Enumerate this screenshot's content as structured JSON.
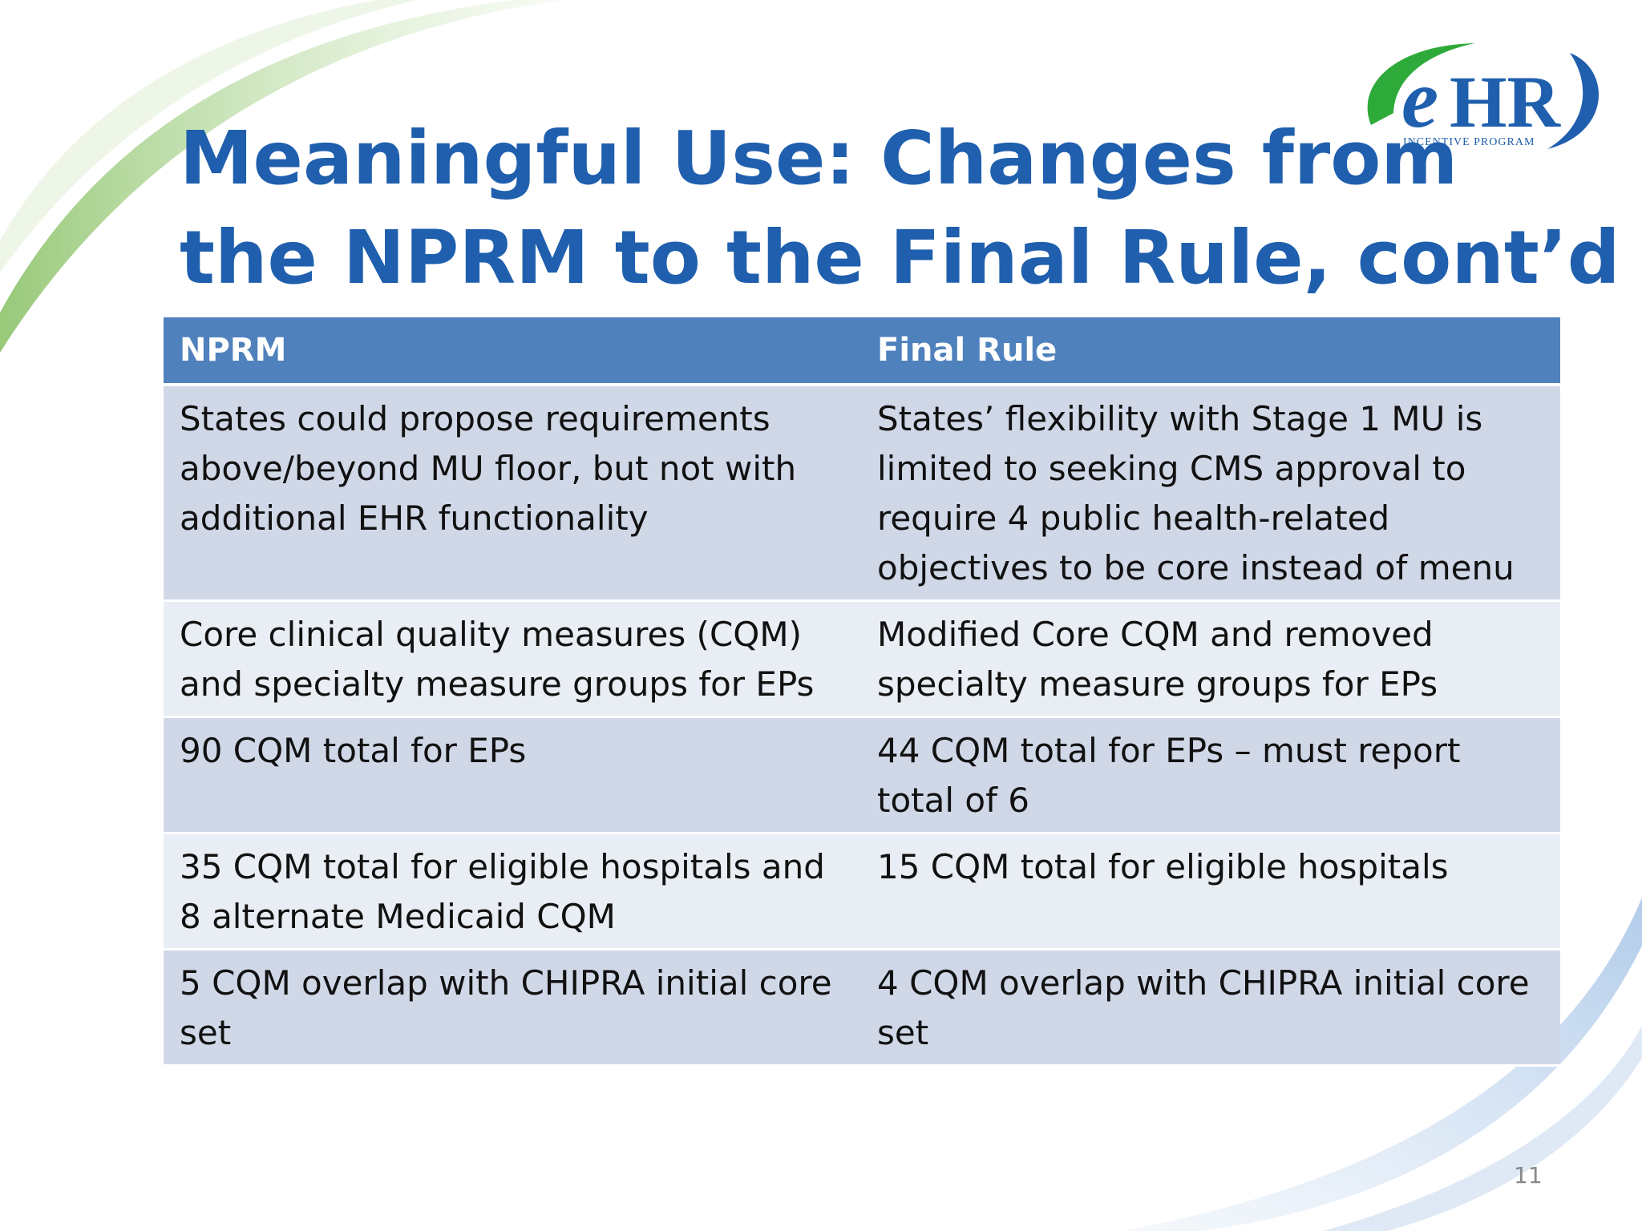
{
  "slide": {
    "title_line1": "Meaningful Use: Changes from",
    "title_line2": "the NPRM to the Final Rule, cont’d",
    "page_number": "11"
  },
  "logo": {
    "mark": "eHR",
    "subtitle": "INCENTIVE PROGRAM",
    "colors": {
      "green": "#2eaa3a",
      "blue": "#1f5fae"
    }
  },
  "table": {
    "headers": [
      "NPRM",
      "Final Rule"
    ],
    "rows": [
      {
        "nprm": "States could propose  requirements above/beyond MU floor, but not with additional EHR functionality",
        "final": "States’ flexibility with Stage 1 MU is limited to seeking CMS approval to require 4 public health-related objectives to be core instead of menu"
      },
      {
        "nprm": "Core clinical quality measures (CQM) and specialty measure groups for EPs",
        "final": "Modified Core CQM and removed specialty measure groups for EPs"
      },
      {
        "nprm": "90 CQM total for EPs",
        "final": "44 CQM total for EPs – must report total of 6"
      },
      {
        "nprm": "35 CQM total for eligible hospitals and 8 alternate Medicaid CQM",
        "final": "15 CQM total for eligible hospitals"
      },
      {
        "nprm": "5 CQM overlap with CHIPRA initial core set",
        "final": "4 CQM overlap with CHIPRA initial core set"
      }
    ],
    "colors": {
      "header": "#4f81bd",
      "row_dark": "#d0d8e8",
      "row_light": "#e9edf4"
    }
  },
  "theme": {
    "title_color": "#1f5fae",
    "swoosh_green": "#a9d18e",
    "swoosh_blue": "#bcd3ec"
  }
}
